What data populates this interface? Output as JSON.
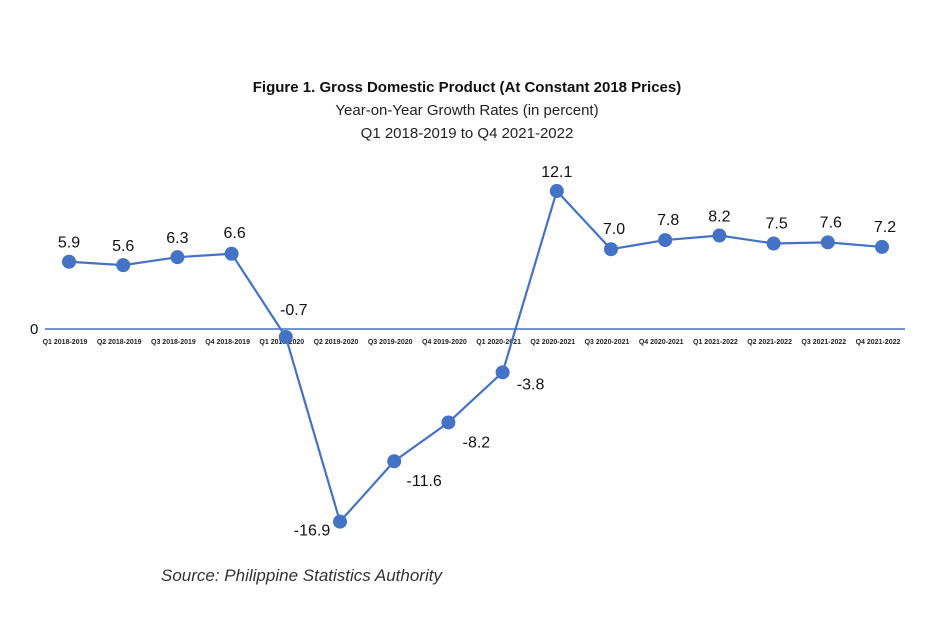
{
  "chart_data": {
    "type": "line",
    "title": "Figure 1. Gross Domestic Product (At Constant 2018 Prices)",
    "subtitle_lines": [
      "Year-on-Year Growth Rates (in percent)",
      "Q1 2018-2019 to Q4 2021-2022"
    ],
    "categories": [
      "Q1 2018-2019",
      "Q2 2018-2019",
      "Q3 2018-2019",
      "Q4 2018-2019",
      "Q1 2019-2020",
      "Q2 2019-2020",
      "Q3 2019-2020",
      "Q4 2019-2020",
      "Q1 2020-2021",
      "Q2 2020-2021",
      "Q3 2020-2021",
      "Q4 2020-2021",
      "Q1 2021-2022",
      "Q2 2021-2022",
      "Q3 2021-2022",
      "Q4 2021-2022"
    ],
    "values": [
      5.9,
      5.6,
      6.3,
      6.6,
      -0.7,
      -16.9,
      -11.6,
      -8.2,
      -3.8,
      12.1,
      7.0,
      7.8,
      8.2,
      7.5,
      7.6,
      7.2
    ],
    "data_labels": [
      "5.9",
      "5.6",
      "6.3",
      "6.6",
      "-0.7",
      "-16.9",
      "-11.6",
      "-8.2",
      "-3.8",
      "12.1",
      "7.0",
      "7.8",
      "8.2",
      "7.5",
      "7.6",
      "7.2"
    ],
    "zero_label": "0",
    "ylim": [
      -17.5,
      12.5
    ],
    "grid": false,
    "colors": {
      "line": "#4472C4",
      "marker": "#4472C4",
      "axis": "#4472C4"
    }
  },
  "source": "Source: Philippine Statistics Authority"
}
